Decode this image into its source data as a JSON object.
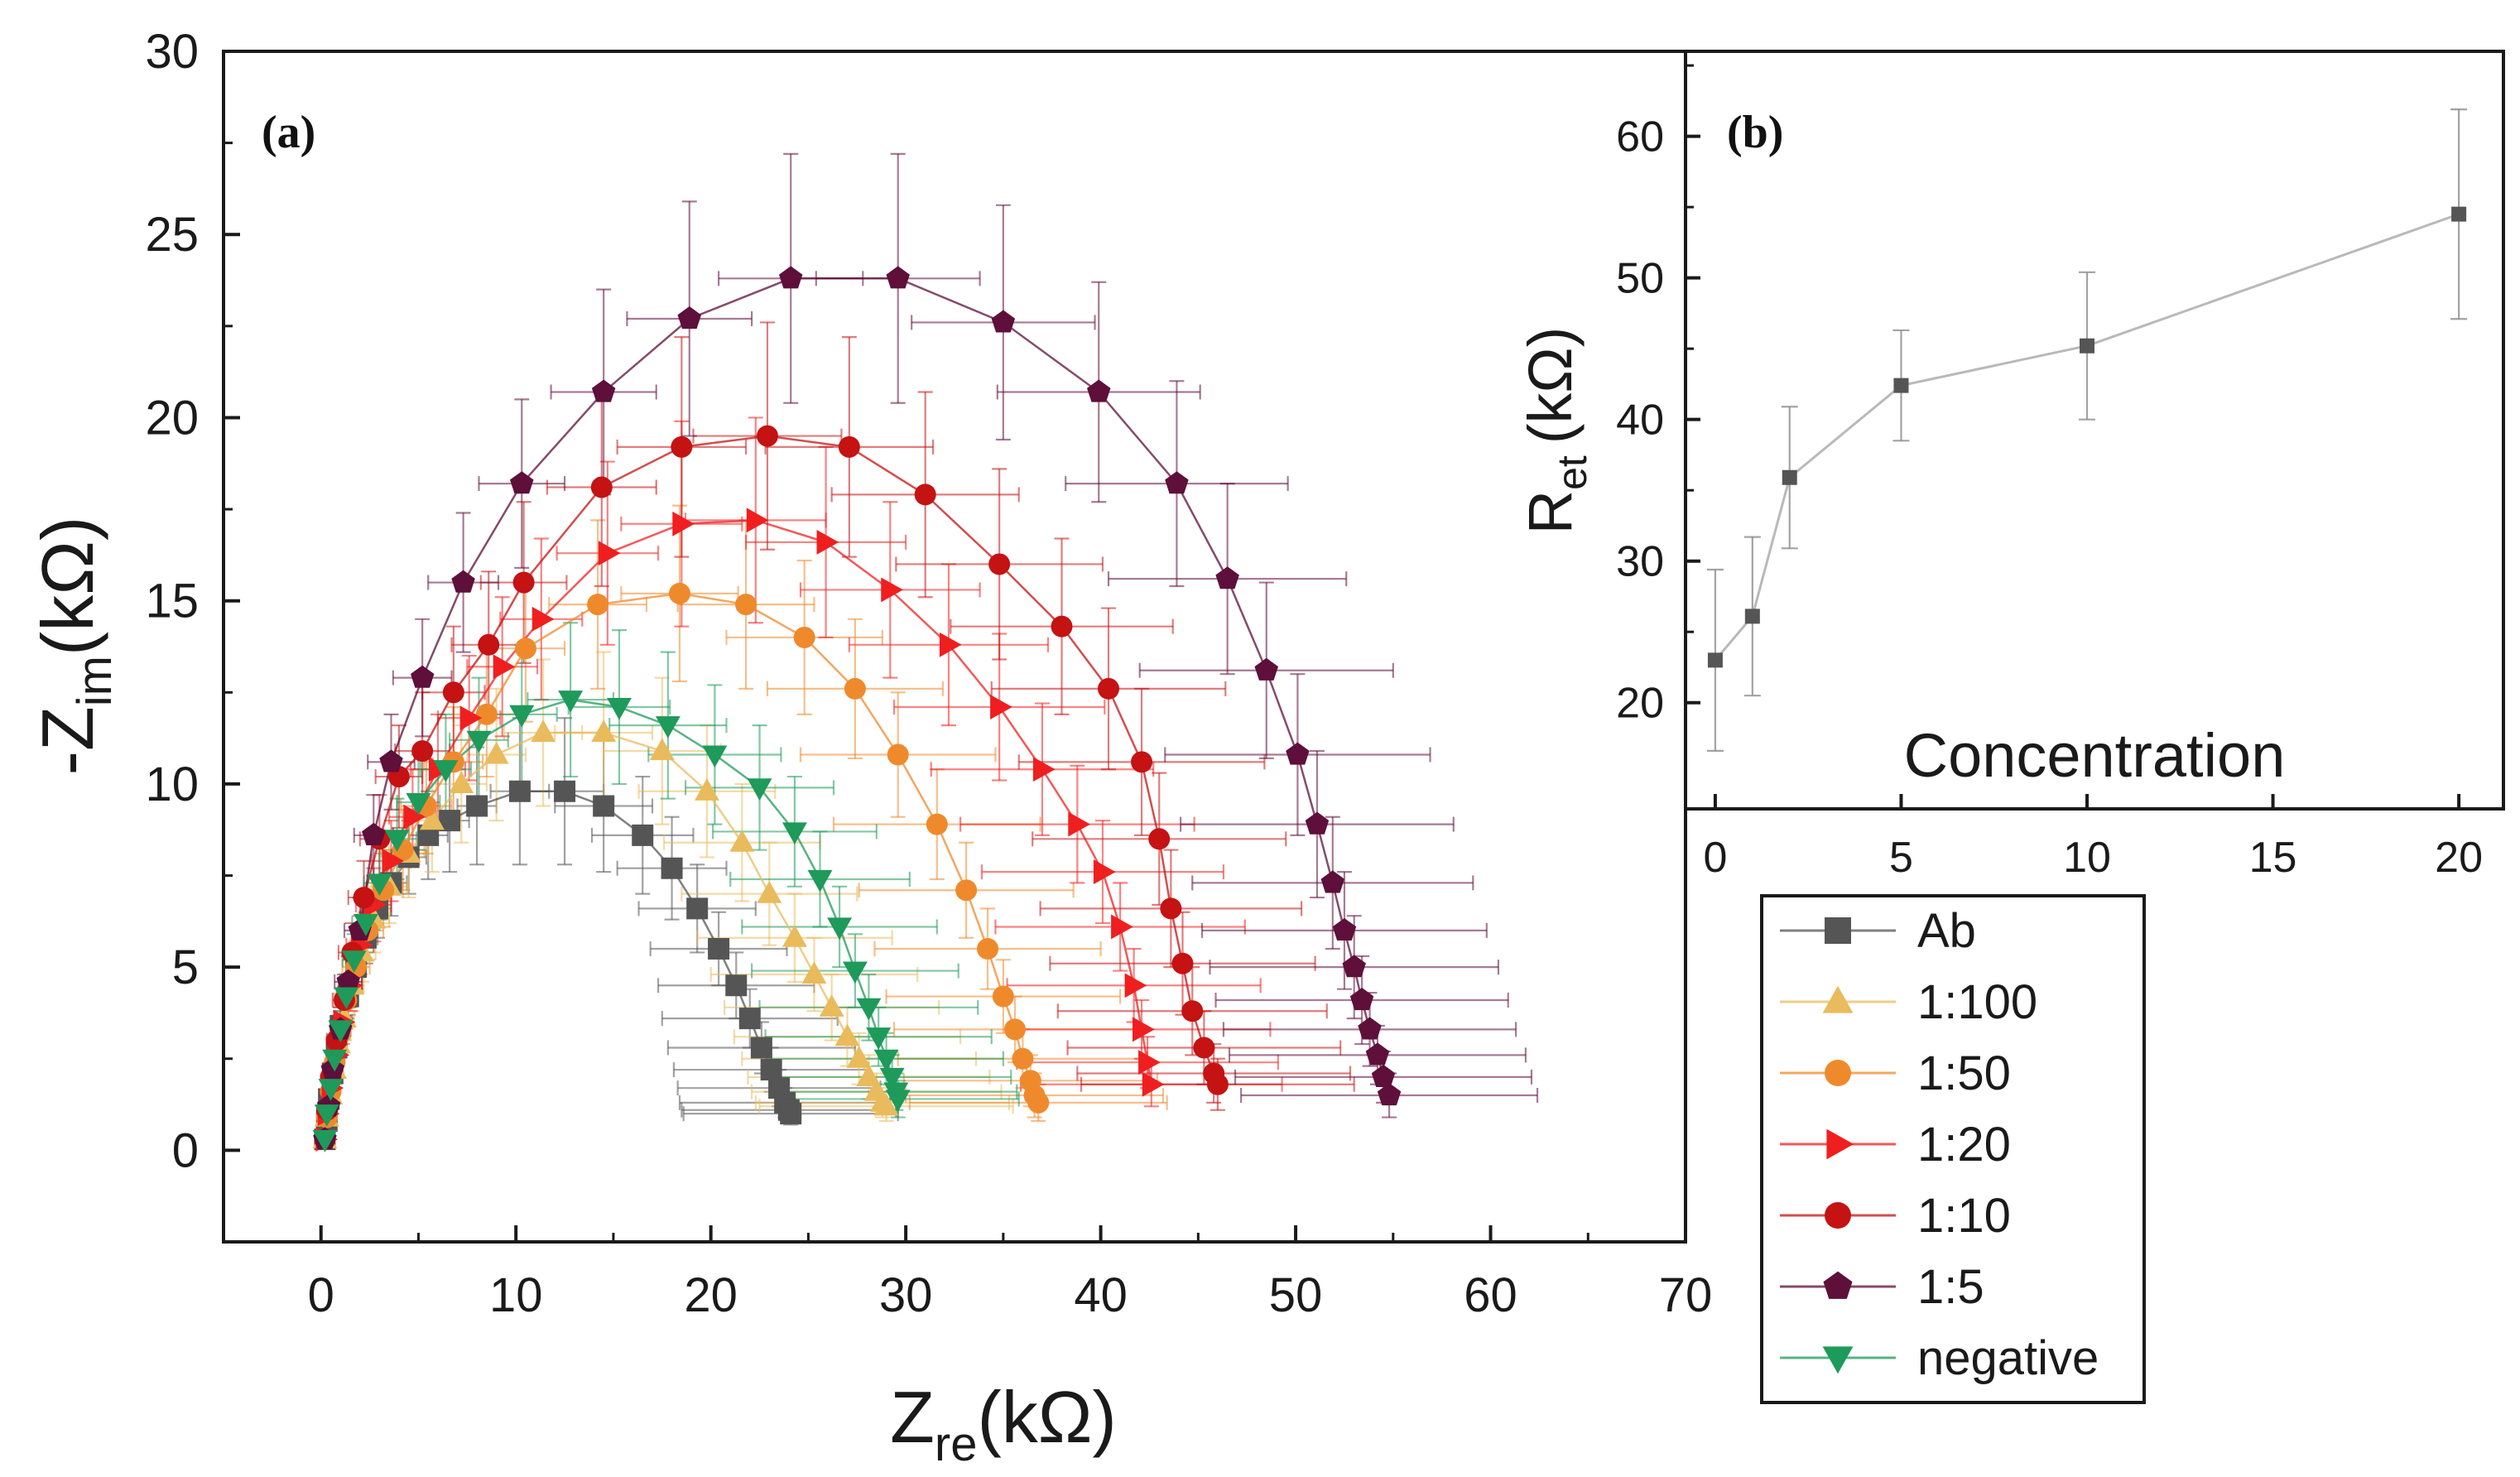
{
  "chart_data": [
    {
      "panel": "a",
      "panel_label": "(a)",
      "type": "scatter",
      "xlabel": {
        "main": "Z",
        "sub": "re",
        "unit": "(kΩ)"
      },
      "ylabel": {
        "main": "-Z",
        "sub": "im",
        "unit": "(kΩ)"
      },
      "xlim": [
        -5,
        70
      ],
      "ylim": [
        -2.5,
        30
      ],
      "xticks": [
        "0",
        "10",
        "20",
        "30",
        "40",
        "50",
        "60",
        "70"
      ],
      "yticks": [
        "0",
        "5",
        "10",
        "15",
        "20",
        "25",
        "30"
      ],
      "series": [
        {
          "name": "Ab",
          "color": "#555555",
          "marker": "square",
          "x": [
            0.2,
            0.3,
            0.4,
            0.6,
            0.8,
            1.0,
            1.4,
            1.8,
            2.3,
            2.9,
            3.6,
            4.5,
            5.5,
            6.6,
            8.0,
            10.2,
            12.5,
            14.5,
            16.5,
            18.0,
            19.3,
            20.4,
            21.3,
            22.0,
            22.6,
            23.1,
            23.5,
            23.8,
            24.0,
            24.1
          ],
          "y": [
            0.3,
            0.8,
            1.4,
            2.1,
            2.8,
            3.4,
            4.2,
            5.0,
            5.8,
            6.6,
            7.3,
            8.0,
            8.6,
            9.0,
            9.4,
            9.8,
            9.8,
            9.4,
            8.6,
            7.7,
            6.6,
            5.5,
            4.5,
            3.6,
            2.8,
            2.2,
            1.7,
            1.3,
            1.1,
            1.0
          ],
          "xerr": [
            0.2,
            0.2,
            0.3,
            0.3,
            0.4,
            0.4,
            0.5,
            0.5,
            0.6,
            0.7,
            0.8,
            0.9,
            1.0,
            1.0,
            1.0,
            1.5,
            2.0,
            2.5,
            2.6,
            2.8,
            3.0,
            3.5,
            4.0,
            4.5,
            4.8,
            5.0,
            5.2,
            5.4,
            5.5,
            5.5
          ],
          "yerr": [
            0.2,
            0.2,
            0.3,
            0.3,
            0.4,
            0.4,
            0.5,
            0.6,
            0.7,
            0.8,
            0.9,
            1.0,
            1.2,
            1.4,
            1.6,
            2.0,
            2.0,
            1.8,
            1.6,
            1.4,
            1.2,
            1.0,
            0.9,
            0.8,
            0.7,
            0.6,
            0.5,
            0.4,
            0.3,
            0.3
          ]
        },
        {
          "name": "1:100",
          "color": "#e9bb5c",
          "marker": "triangle-up",
          "x": [
            0.2,
            0.3,
            0.5,
            0.7,
            0.9,
            1.2,
            1.6,
            2.1,
            2.7,
            3.5,
            4.5,
            5.7,
            7.2,
            9.0,
            11.4,
            14.5,
            17.5,
            19.8,
            21.6,
            23.0,
            24.3,
            25.3,
            26.2,
            27.0,
            27.6,
            28.1,
            28.5,
            28.8,
            29.0
          ],
          "y": [
            0.3,
            0.9,
            1.5,
            2.2,
            2.9,
            3.6,
            4.5,
            5.4,
            6.3,
            7.2,
            8.1,
            9.0,
            10.0,
            10.8,
            11.4,
            11.4,
            10.9,
            9.8,
            8.4,
            7.0,
            5.8,
            4.8,
            3.9,
            3.1,
            2.5,
            2.0,
            1.6,
            1.3,
            1.2
          ],
          "xerr": [
            0.2,
            0.2,
            0.3,
            0.3,
            0.4,
            0.5,
            0.6,
            0.7,
            0.8,
            0.9,
            1.0,
            1.1,
            1.3,
            1.5,
            2.0,
            2.5,
            3.0,
            3.5,
            4.0,
            4.5,
            5.0,
            5.3,
            5.5,
            5.8,
            6.0,
            6.2,
            6.4,
            6.5,
            6.5
          ],
          "yerr": [
            0.2,
            0.3,
            0.3,
            0.4,
            0.5,
            0.6,
            0.7,
            0.8,
            0.9,
            1.0,
            1.2,
            1.4,
            1.6,
            1.8,
            2.0,
            2.2,
            2.0,
            1.8,
            1.6,
            1.4,
            1.2,
            1.0,
            0.9,
            0.8,
            0.7,
            0.6,
            0.5,
            0.4,
            0.4
          ]
        },
        {
          "name": "1:50",
          "color": "#ef8a2c",
          "marker": "circle",
          "x": [
            0.2,
            0.3,
            0.5,
            0.7,
            1.0,
            1.3,
            1.8,
            2.4,
            3.2,
            4.2,
            5.4,
            6.8,
            8.5,
            10.5,
            14.2,
            18.4,
            21.8,
            24.8,
            27.4,
            29.6,
            31.6,
            33.1,
            34.2,
            35.0,
            35.6,
            36.0,
            36.4,
            36.6,
            36.8
          ],
          "y": [
            0.3,
            0.9,
            1.6,
            2.4,
            3.2,
            4.1,
            5.0,
            6.0,
            7.1,
            8.2,
            9.4,
            10.6,
            11.9,
            13.7,
            14.9,
            15.2,
            14.9,
            14.0,
            12.6,
            10.8,
            8.9,
            7.1,
            5.5,
            4.2,
            3.3,
            2.5,
            1.9,
            1.5,
            1.3
          ],
          "xerr": [
            0.2,
            0.3,
            0.3,
            0.4,
            0.5,
            0.6,
            0.7,
            0.8,
            1.0,
            1.1,
            1.3,
            1.5,
            1.7,
            2.0,
            2.5,
            3.0,
            3.5,
            4.0,
            4.5,
            5.0,
            5.3,
            5.5,
            5.8,
            6.0,
            6.2,
            6.4,
            6.5,
            6.6,
            6.6
          ],
          "yerr": [
            0.2,
            0.3,
            0.3,
            0.4,
            0.5,
            0.6,
            0.7,
            0.8,
            1.0,
            1.1,
            1.3,
            1.5,
            1.7,
            2.0,
            2.3,
            2.4,
            2.3,
            2.1,
            1.9,
            1.7,
            1.5,
            1.3,
            1.1,
            1.0,
            0.9,
            0.8,
            0.7,
            0.6,
            0.5
          ]
        },
        {
          "name": "1:20",
          "color": "#f01f1f",
          "marker": "triangle-right",
          "x": [
            0.2,
            0.3,
            0.5,
            0.8,
            1.1,
            1.5,
            2.0,
            2.7,
            3.6,
            4.7,
            6.0,
            7.6,
            9.3,
            11.3,
            14.7,
            18.5,
            22.3,
            25.9,
            29.2,
            32.2,
            34.8,
            37.0,
            38.8,
            40.1,
            41.0,
            41.7,
            42.1,
            42.4,
            42.6
          ],
          "y": [
            0.3,
            1.0,
            1.7,
            2.6,
            3.5,
            4.5,
            5.6,
            6.7,
            7.9,
            9.1,
            10.4,
            11.8,
            13.2,
            14.5,
            16.3,
            17.1,
            17.2,
            16.6,
            15.3,
            13.8,
            12.1,
            10.4,
            8.9,
            7.6,
            6.1,
            4.5,
            3.3,
            2.4,
            1.8
          ],
          "xerr": [
            0.2,
            0.3,
            0.3,
            0.4,
            0.5,
            0.6,
            0.7,
            0.9,
            1.0,
            1.2,
            1.4,
            1.6,
            1.8,
            2.1,
            2.6,
            3.1,
            3.6,
            4.1,
            4.6,
            5.1,
            5.4,
            5.7,
            6.0,
            6.2,
            6.4,
            6.5,
            6.6,
            6.7,
            6.7
          ],
          "yerr": [
            0.2,
            0.3,
            0.4,
            0.5,
            0.6,
            0.7,
            0.8,
            1.0,
            1.1,
            1.3,
            1.5,
            1.7,
            1.9,
            2.2,
            2.5,
            2.8,
            2.8,
            2.6,
            2.4,
            2.2,
            2.0,
            1.8,
            1.6,
            1.4,
            1.2,
            1.0,
            0.8,
            0.7,
            0.6
          ],
          "xlabel_dup": ""
        },
        {
          "name": "1:10",
          "color": "#c51212",
          "marker": "circle",
          "x": [
            0.2,
            0.3,
            0.5,
            0.8,
            1.2,
            1.6,
            2.2,
            3.0,
            4.0,
            5.2,
            6.8,
            8.6,
            10.4,
            14.4,
            18.5,
            22.9,
            27.1,
            31.0,
            34.8,
            38.0,
            40.4,
            42.1,
            43.0,
            43.6,
            44.2,
            44.7,
            45.3,
            45.8,
            46.0
          ],
          "y": [
            0.3,
            1.1,
            2.0,
            3.0,
            4.1,
            5.4,
            6.9,
            8.5,
            10.2,
            10.9,
            12.5,
            13.8,
            15.5,
            18.1,
            19.2,
            19.5,
            19.2,
            17.9,
            16.0,
            14.3,
            12.6,
            10.6,
            8.5,
            6.6,
            5.1,
            3.8,
            2.8,
            2.1,
            1.8
          ],
          "xerr": [
            0.2,
            0.3,
            0.4,
            0.5,
            0.6,
            0.7,
            0.8,
            1.0,
            1.2,
            1.4,
            1.6,
            1.9,
            2.2,
            2.8,
            3.3,
            3.8,
            4.3,
            4.8,
            5.3,
            5.7,
            6.0,
            6.3,
            6.5,
            6.7,
            6.8,
            6.9,
            7.0,
            7.0,
            7.0
          ],
          "yerr": [
            0.2,
            0.3,
            0.4,
            0.5,
            0.7,
            0.8,
            1.0,
            1.2,
            1.4,
            1.6,
            1.8,
            2.0,
            2.2,
            2.7,
            3.0,
            3.1,
            3.0,
            2.8,
            2.6,
            2.4,
            2.2,
            2.0,
            1.8,
            1.6,
            1.4,
            1.2,
            1.0,
            0.8,
            0.7
          ]
        },
        {
          "name": "1:5",
          "color": "#5e0f3a",
          "marker": "pentagon",
          "x": [
            0.2,
            0.4,
            0.6,
            1.0,
            1.4,
            2.0,
            2.7,
            3.6,
            5.2,
            7.3,
            10.3,
            14.5,
            18.9,
            24.1,
            29.6,
            35.0,
            39.9,
            43.9,
            46.5,
            48.5,
            50.1,
            51.1,
            51.9,
            52.5,
            53.0,
            53.4,
            53.8,
            54.2,
            54.5,
            54.8
          ],
          "y": [
            0.3,
            1.2,
            2.2,
            3.3,
            4.6,
            6.0,
            8.6,
            10.6,
            12.9,
            15.5,
            18.2,
            20.7,
            22.7,
            23.8,
            23.8,
            22.6,
            20.7,
            18.2,
            15.6,
            13.1,
            10.8,
            8.9,
            7.3,
            6.0,
            5.0,
            4.1,
            3.3,
            2.6,
            2.0,
            1.5
          ],
          "xerr": [
            0.2,
            0.3,
            0.4,
            0.5,
            0.7,
            0.8,
            1.0,
            1.2,
            1.5,
            1.8,
            2.2,
            2.7,
            3.2,
            3.7,
            4.2,
            4.7,
            5.2,
            5.7,
            6.1,
            6.5,
            6.8,
            7.0,
            7.2,
            7.3,
            7.4,
            7.5,
            7.5,
            7.6,
            7.6,
            7.6
          ],
          "yerr": [
            0.2,
            0.3,
            0.4,
            0.6,
            0.7,
            0.9,
            1.1,
            1.3,
            1.6,
            1.9,
            2.3,
            2.8,
            3.2,
            3.4,
            3.4,
            3.2,
            3.0,
            2.8,
            2.6,
            2.4,
            2.2,
            2.0,
            1.8,
            1.6,
            1.4,
            1.2,
            1.0,
            0.8,
            0.7,
            0.6
          ]
        },
        {
          "name": "negative",
          "color": "#1e9a5a",
          "marker": "triangle-down",
          "x": [
            0.2,
            0.3,
            0.5,
            0.7,
            1.0,
            1.3,
            1.7,
            2.3,
            3.0,
            3.9,
            5.0,
            6.4,
            8.1,
            10.3,
            12.8,
            15.3,
            17.8,
            20.2,
            22.5,
            24.3,
            25.6,
            26.6,
            27.4,
            28.1,
            28.6,
            29.0,
            29.3,
            29.5,
            29.6
          ],
          "y": [
            0.3,
            1.0,
            1.7,
            2.5,
            3.3,
            4.2,
            5.2,
            6.2,
            7.3,
            8.5,
            9.5,
            10.4,
            11.2,
            11.9,
            12.3,
            12.1,
            11.6,
            10.8,
            9.9,
            8.7,
            7.4,
            6.1,
            4.9,
            3.9,
            3.1,
            2.5,
            2.0,
            1.6,
            1.4
          ],
          "xerr": [
            0.2,
            0.2,
            0.3,
            0.4,
            0.4,
            0.5,
            0.6,
            0.7,
            0.8,
            1.0,
            1.1,
            1.3,
            1.5,
            1.8,
            2.2,
            2.6,
            3.0,
            3.4,
            3.8,
            4.2,
            4.6,
            5.0,
            5.3,
            5.6,
            5.8,
            6.0,
            6.1,
            6.2,
            6.2
          ],
          "yerr": [
            0.2,
            0.3,
            0.3,
            0.4,
            0.5,
            0.6,
            0.7,
            0.8,
            1.0,
            1.1,
            1.3,
            1.5,
            1.7,
            1.9,
            2.1,
            2.1,
            2.0,
            1.9,
            1.7,
            1.5,
            1.3,
            1.1,
            1.0,
            0.9,
            0.8,
            0.7,
            0.6,
            0.5,
            0.5
          ]
        }
      ],
      "legend": {
        "placement": "lower-right, outside panel b",
        "entries": [
          "Ab",
          "1:100",
          "1:50",
          "1:20",
          "1:10",
          "1:5",
          "negative"
        ]
      }
    },
    {
      "panel": "b",
      "panel_label": "(b)",
      "type": "line",
      "xlabel": "Concentration",
      "ylabel": {
        "main": "R",
        "sub": "et",
        "unit": "(kΩ)"
      },
      "xlim": [
        -0.8,
        21.2
      ],
      "ylim": [
        12.5,
        66
      ],
      "xticks": [
        "0",
        "5",
        "10",
        "15",
        "20"
      ],
      "yticks": [
        "20",
        "30",
        "40",
        "50",
        "60"
      ],
      "color": "#8c8c8c",
      "marker": "square",
      "x": [
        0,
        1,
        2,
        5,
        10,
        20
      ],
      "y": [
        23.0,
        26.1,
        35.9,
        42.4,
        45.2,
        54.5
      ],
      "yerr": [
        6.4,
        5.6,
        5.0,
        3.9,
        5.2,
        7.4
      ]
    }
  ]
}
